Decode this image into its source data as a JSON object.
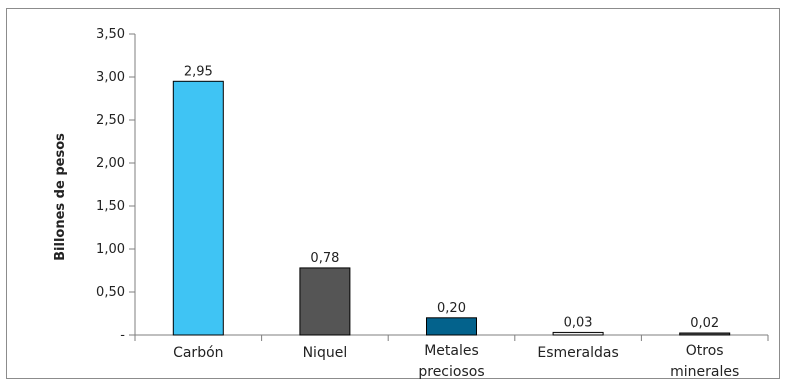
{
  "chart_data": {
    "type": "bar",
    "title": "",
    "xlabel": "",
    "ylabel": "Billones de pesos",
    "categories": [
      {
        "lines": [
          "Carbón"
        ]
      },
      {
        "lines": [
          "Niquel"
        ]
      },
      {
        "lines": [
          "Metales",
          "preciosos"
        ]
      },
      {
        "lines": [
          "Esmeraldas"
        ]
      },
      {
        "lines": [
          "Otros",
          "minerales"
        ]
      }
    ],
    "values": [
      2.95,
      0.78,
      0.2,
      0.03,
      0.02
    ],
    "value_labels": [
      "2,95",
      "0,78",
      "0,20",
      "0,03",
      "0,02"
    ],
    "bar_colors": [
      "#3fc4f4",
      "#555555",
      "#03628c",
      "#eeeeee",
      "#555555"
    ],
    "ylim": [
      0,
      3.5
    ],
    "yticks": [
      0,
      0.5,
      1.0,
      1.5,
      2.0,
      2.5,
      3.0,
      3.5
    ],
    "ytick_labels": [
      "-",
      "0,50",
      "1,00",
      "1,50",
      "2,00",
      "2,50",
      "3,00",
      "3,50"
    ],
    "grid": false,
    "legend": "none"
  }
}
